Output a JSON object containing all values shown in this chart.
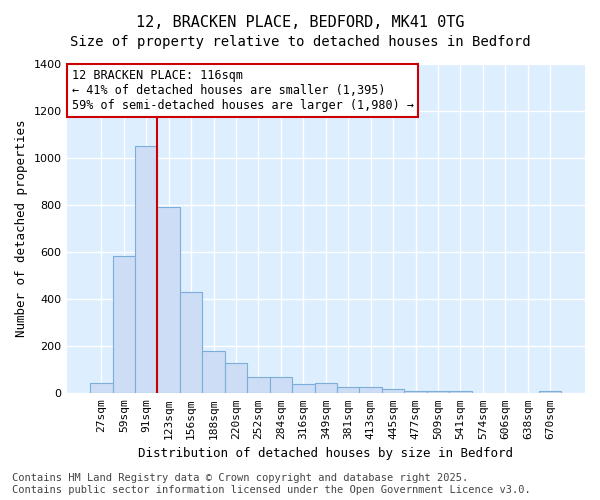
{
  "title_line1": "12, BRACKEN PLACE, BEDFORD, MK41 0TG",
  "title_line2": "Size of property relative to detached houses in Bedford",
  "xlabel": "Distribution of detached houses by size in Bedford",
  "ylabel": "Number of detached properties",
  "categories": [
    "27sqm",
    "59sqm",
    "91sqm",
    "123sqm",
    "156sqm",
    "188sqm",
    "220sqm",
    "252sqm",
    "284sqm",
    "316sqm",
    "349sqm",
    "381sqm",
    "413sqm",
    "445sqm",
    "477sqm",
    "509sqm",
    "541sqm",
    "574sqm",
    "606sqm",
    "638sqm",
    "670sqm"
  ],
  "values": [
    45,
    585,
    1050,
    790,
    430,
    178,
    128,
    68,
    68,
    40,
    42,
    25,
    25,
    18,
    10,
    10,
    8,
    2,
    0,
    0,
    10
  ],
  "bar_color": "#ccddf5",
  "bar_edge_color": "#7dadd9",
  "vline_x_pos": 2.5,
  "vline_color": "#cc0000",
  "annotation_text": "12 BRACKEN PLACE: 116sqm\n← 41% of detached houses are smaller (1,395)\n59% of semi-detached houses are larger (1,980) →",
  "annotation_box_color": "#ffffff",
  "annotation_box_edge_color": "#cc0000",
  "ylim": [
    0,
    1400
  ],
  "yticks": [
    0,
    200,
    400,
    600,
    800,
    1000,
    1200,
    1400
  ],
  "plot_bg_color": "#ddeeff",
  "fig_bg_color": "#ffffff",
  "grid_color": "#ffffff",
  "footer_line1": "Contains HM Land Registry data © Crown copyright and database right 2025.",
  "footer_line2": "Contains public sector information licensed under the Open Government Licence v3.0.",
  "title_fontsize": 11,
  "subtitle_fontsize": 10,
  "axis_label_fontsize": 9,
  "tick_fontsize": 8,
  "annotation_fontsize": 8.5,
  "footer_fontsize": 7.5
}
